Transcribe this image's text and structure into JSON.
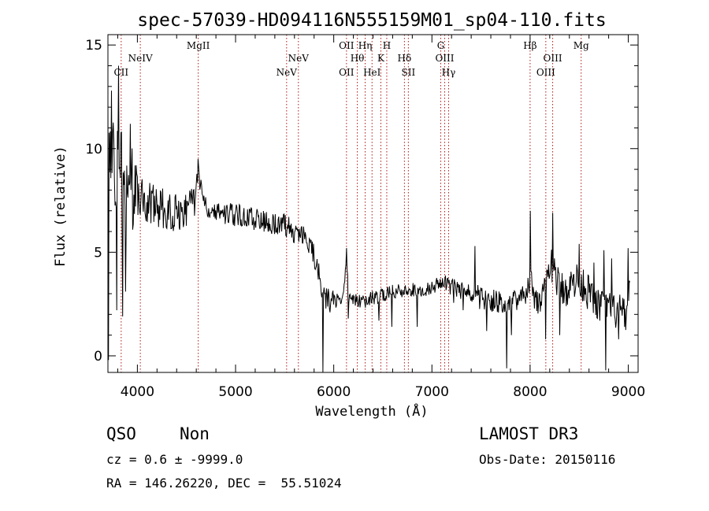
{
  "chart_data": {
    "type": "line",
    "title": "spec-57039-HD094116N555159M01_sp04-110.fits",
    "xlabel": "Wavelength (Å)",
    "ylabel": "Flux (relative)",
    "xlim": [
      3700,
      9100
    ],
    "ylim": [
      -0.8,
      15.5
    ],
    "xticks": [
      4000,
      5000,
      6000,
      7000,
      8000,
      9000
    ],
    "yticks": [
      0,
      5,
      10,
      15
    ],
    "spectral_lines": [
      {
        "name": "CII",
        "wavelength": 3835,
        "level": 2
      },
      {
        "name": "NeIV",
        "wavelength": 4030,
        "level": 1
      },
      {
        "name": "MgII",
        "wavelength": 4620,
        "level": 0
      },
      {
        "name": "NeV",
        "wavelength": 5520,
        "level": 2
      },
      {
        "name": "NeV",
        "wavelength": 5640,
        "level": 1
      },
      {
        "name": "OII",
        "wavelength": 6130,
        "level": 0
      },
      {
        "name": "OII",
        "wavelength": 6130,
        "level": 2
      },
      {
        "name": "Hθ",
        "wavelength": 6240,
        "level": 1
      },
      {
        "name": "Hη",
        "wavelength": 6320,
        "level": 0
      },
      {
        "name": "HeI",
        "wavelength": 6390,
        "level": 2
      },
      {
        "name": "K",
        "wavelength": 6480,
        "level": 1
      },
      {
        "name": "H",
        "wavelength": 6540,
        "level": 0
      },
      {
        "name": "Hδ",
        "wavelength": 6720,
        "level": 1
      },
      {
        "name": "SII",
        "wavelength": 6760,
        "level": 2
      },
      {
        "name": "G",
        "wavelength": 7090,
        "level": 0
      },
      {
        "name": "OIII",
        "wavelength": 7130,
        "level": 1
      },
      {
        "name": "Hγ",
        "wavelength": 7170,
        "level": 2
      },
      {
        "name": "Hβ",
        "wavelength": 8000,
        "level": 0
      },
      {
        "name": "OIII",
        "wavelength": 8160,
        "level": 2
      },
      {
        "name": "OIII",
        "wavelength": 8230,
        "level": 1
      },
      {
        "name": "Mg",
        "wavelength": 8520,
        "level": 0
      }
    ],
    "series": [
      {
        "name": "flux",
        "anchors": [
          [
            3700,
            13.2
          ],
          [
            3720,
            10.8
          ],
          [
            3750,
            9.8
          ],
          [
            3800,
            9.0
          ],
          [
            3850,
            8.6
          ],
          [
            3900,
            8.3
          ],
          [
            3950,
            8.1
          ],
          [
            4000,
            7.8
          ],
          [
            4050,
            7.6
          ],
          [
            4100,
            7.4
          ],
          [
            4150,
            7.3
          ],
          [
            4200,
            7.2
          ],
          [
            4300,
            7.0
          ],
          [
            4400,
            7.0
          ],
          [
            4500,
            7.1
          ],
          [
            4560,
            7.3
          ],
          [
            4600,
            8.0
          ],
          [
            4620,
            9.0
          ],
          [
            4650,
            8.1
          ],
          [
            4700,
            7.3
          ],
          [
            4800,
            7.0
          ],
          [
            4900,
            6.9
          ],
          [
            5000,
            6.8
          ],
          [
            5100,
            6.7
          ],
          [
            5200,
            6.6
          ],
          [
            5300,
            6.5
          ],
          [
            5400,
            6.4
          ],
          [
            5500,
            6.3
          ],
          [
            5600,
            6.0
          ],
          [
            5700,
            5.7
          ],
          [
            5750,
            5.5
          ],
          [
            5800,
            4.8
          ],
          [
            5850,
            4.0
          ],
          [
            5880,
            3.0
          ],
          [
            5900,
            2.7
          ],
          [
            6000,
            2.6
          ],
          [
            6100,
            2.9
          ],
          [
            6130,
            4.6
          ],
          [
            6150,
            2.9
          ],
          [
            6200,
            2.8
          ],
          [
            6300,
            2.6
          ],
          [
            6400,
            2.8
          ],
          [
            6500,
            2.9
          ],
          [
            6600,
            3.1
          ],
          [
            6700,
            3.1
          ],
          [
            6800,
            3.2
          ],
          [
            6900,
            3.2
          ],
          [
            7000,
            3.3
          ],
          [
            7100,
            3.6
          ],
          [
            7150,
            3.5
          ],
          [
            7200,
            3.2
          ],
          [
            7300,
            3.0
          ],
          [
            7400,
            2.9
          ],
          [
            7500,
            2.8
          ],
          [
            7600,
            2.7
          ],
          [
            7700,
            2.6
          ],
          [
            7800,
            2.7
          ],
          [
            7900,
            2.8
          ],
          [
            7950,
            2.8
          ],
          [
            8000,
            3.8
          ],
          [
            8050,
            2.8
          ],
          [
            8150,
            2.9
          ],
          [
            8230,
            4.5
          ],
          [
            8300,
            3.2
          ],
          [
            8400,
            3.3
          ],
          [
            8500,
            3.8
          ],
          [
            8600,
            3.0
          ],
          [
            8700,
            2.4
          ],
          [
            8800,
            2.2
          ],
          [
            8900,
            2.1
          ],
          [
            9000,
            2.0
          ],
          [
            9020,
            3.5
          ]
        ],
        "noise_segments": [
          [
            3700,
            4000,
            2.2
          ],
          [
            4000,
            4600,
            1.0
          ],
          [
            4600,
            5800,
            0.55
          ],
          [
            5800,
            6000,
            0.6
          ],
          [
            6000,
            7200,
            0.35
          ],
          [
            7200,
            8000,
            0.6
          ],
          [
            8000,
            9020,
            0.9
          ]
        ],
        "sample_step": 6,
        "spikes": [
          [
            3705,
            -0.2
          ],
          [
            3735,
            12.8
          ],
          [
            3790,
            2.2
          ],
          [
            3810,
            14.0
          ],
          [
            3850,
            1.9
          ],
          [
            3880,
            3.1
          ],
          [
            3930,
            11.2
          ],
          [
            4620,
            9.5
          ],
          [
            5890,
            -0.8
          ],
          [
            6130,
            5.2
          ],
          [
            6150,
            1.8
          ],
          [
            6460,
            1.7
          ],
          [
            6590,
            1.4
          ],
          [
            6850,
            1.4
          ],
          [
            7320,
            2.2
          ],
          [
            7440,
            5.3
          ],
          [
            7560,
            1.2
          ],
          [
            7760,
            -0.6
          ],
          [
            7810,
            1.0
          ],
          [
            8000,
            7.0
          ],
          [
            8160,
            0.8
          ],
          [
            8230,
            6.9
          ],
          [
            8300,
            1.0
          ],
          [
            8500,
            5.4
          ],
          [
            8650,
            4.5
          ],
          [
            8750,
            5.1
          ],
          [
            8770,
            -0.7
          ],
          [
            8830,
            4.7
          ],
          [
            8900,
            0.8
          ],
          [
            8960,
            1.4
          ],
          [
            9000,
            5.2
          ]
        ],
        "seed": 57039
      }
    ]
  },
  "info": {
    "class": "QSO",
    "subclass": "Non",
    "redshift": "cz = 0.6 ± -9999.0",
    "coords": "RA = 146.26220, DEC =  55.51024",
    "survey": "LAMOST DR3",
    "obs_date": "Obs-Date: 20150116"
  }
}
